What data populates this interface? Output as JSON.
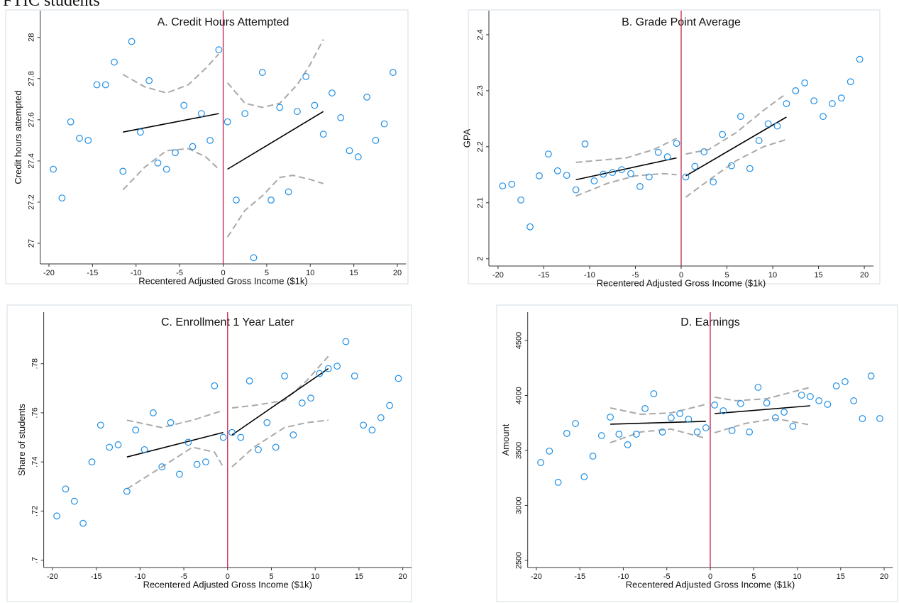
{
  "page_title": "FTIC students",
  "chart_data": [
    {
      "type": "scatter",
      "title": "A. Credit Hours Attempted",
      "x_label": "Recentered Adjusted Gross Income ($1k)",
      "y_label": "Credit hours attempted",
      "xlim": [
        -21,
        21
      ],
      "ylim": [
        26.9,
        28.13
      ],
      "xticks": [
        -20,
        -15,
        -10,
        -5,
        0,
        5,
        10,
        15,
        20
      ],
      "yticks": [
        27,
        27.2,
        27.4,
        27.6,
        27.8,
        28
      ],
      "cutoff": 0,
      "marker_color": "#1e8fe6",
      "cutoff_color": "#c0103a",
      "fit_color": "#000000",
      "band_color": "#a9a9a9",
      "x": [
        -19.5,
        -18.5,
        -17.5,
        -16.5,
        -15.5,
        -14.5,
        -13.5,
        -12.5,
        -11.5,
        -10.5,
        -9.5,
        -8.5,
        -7.5,
        -6.5,
        -5.5,
        -4.5,
        -3.5,
        -2.5,
        -1.5,
        -0.5,
        0.5,
        1.5,
        2.5,
        3.5,
        4.5,
        5.5,
        6.5,
        7.5,
        8.5,
        9.5,
        10.5,
        11.5,
        12.5,
        13.5,
        14.5,
        15.5,
        16.5,
        17.5,
        18.5,
        19.5
      ],
      "values": [
        27.36,
        27.22,
        27.59,
        27.51,
        27.5,
        27.77,
        27.77,
        27.88,
        27.35,
        27.98,
        27.54,
        27.79,
        27.39,
        27.36,
        27.44,
        27.67,
        27.47,
        27.63,
        27.5,
        27.94,
        27.59,
        27.21,
        27.63,
        26.93,
        27.83,
        27.21,
        27.66,
        27.25,
        27.64,
        27.81,
        27.67,
        27.53,
        27.73,
        27.61,
        27.45,
        27.42,
        27.71,
        27.5,
        27.58,
        27.83
      ],
      "fits": [
        {
          "x": [
            -11.5,
            -0.5
          ],
          "values": [
            27.54,
            27.63
          ]
        },
        {
          "x": [
            0.5,
            11.5
          ],
          "values": [
            27.36,
            27.64
          ]
        }
      ],
      "bands": [
        {
          "x": [
            -11.5,
            -9,
            -6.5,
            -4,
            -2,
            -0.5
          ],
          "values": [
            27.82,
            27.76,
            27.73,
            27.77,
            27.85,
            27.92
          ]
        },
        {
          "x": [
            -11.5,
            -9,
            -6.5,
            -4,
            -2,
            -0.5
          ],
          "values": [
            27.26,
            27.37,
            27.45,
            27.46,
            27.42,
            27.36
          ]
        },
        {
          "x": [
            0.5,
            2.5,
            4.5,
            6.5,
            8.5,
            10,
            11.5
          ],
          "values": [
            27.78,
            27.68,
            27.66,
            27.68,
            27.77,
            27.87,
            27.99
          ]
        },
        {
          "x": [
            0.5,
            2.5,
            4.5,
            6.5,
            8,
            10,
            11.5
          ],
          "values": [
            27.03,
            27.16,
            27.23,
            27.32,
            27.33,
            27.31,
            27.29
          ]
        }
      ]
    },
    {
      "type": "scatter",
      "title": "B. Grade Point Average",
      "x_label": "Recentered Adjusted Gross Income ($1k)",
      "y_label": "GPA",
      "xlim": [
        -21,
        21
      ],
      "ylim": [
        1.987,
        2.443
      ],
      "xticks": [
        -20,
        -15,
        -10,
        -5,
        0,
        5,
        10,
        15,
        20
      ],
      "yticks": [
        2,
        2.1,
        2.2,
        2.3,
        2.4
      ],
      "cutoff": 0,
      "marker_color": "#1e8fe6",
      "cutoff_color": "#c0103a",
      "fit_color": "#000000",
      "band_color": "#a9a9a9",
      "x": [
        -19.5,
        -18.5,
        -17.5,
        -16.5,
        -15.5,
        -14.5,
        -13.5,
        -12.5,
        -11.5,
        -10.5,
        -9.5,
        -8.5,
        -7.5,
        -6.5,
        -5.5,
        -4.5,
        -3.5,
        -2.5,
        -1.5,
        -0.5,
        0.5,
        1.5,
        2.5,
        3.5,
        4.5,
        5.5,
        6.5,
        7.5,
        8.5,
        9.5,
        10.5,
        11.5,
        12.5,
        13.5,
        14.5,
        15.5,
        16.5,
        17.5,
        18.5,
        19.5
      ],
      "values": [
        2.13,
        2.133,
        2.105,
        2.057,
        2.148,
        2.187,
        2.157,
        2.149,
        2.123,
        2.205,
        2.139,
        2.151,
        2.154,
        2.159,
        2.152,
        2.129,
        2.146,
        2.19,
        2.182,
        2.206,
        2.146,
        2.165,
        2.191,
        2.137,
        2.222,
        2.166,
        2.254,
        2.161,
        2.211,
        2.241,
        2.237,
        2.277,
        2.3,
        2.314,
        2.282,
        2.254,
        2.277,
        2.287,
        2.316,
        2.356
      ],
      "fits": [
        {
          "x": [
            -11.5,
            -0.5
          ],
          "values": [
            2.141,
            2.18
          ]
        },
        {
          "x": [
            0.5,
            11.5
          ],
          "values": [
            2.148,
            2.253
          ]
        }
      ],
      "bands": [
        {
          "x": [
            -11.5,
            -6,
            -3,
            -0.5
          ],
          "values": [
            2.172,
            2.18,
            2.195,
            2.215
          ]
        },
        {
          "x": [
            -11.5,
            -8,
            -5,
            -2,
            -0.5
          ],
          "values": [
            2.112,
            2.135,
            2.148,
            2.152,
            2.15
          ]
        },
        {
          "x": [
            0.5,
            3,
            6,
            9,
            11.5
          ],
          "values": [
            2.187,
            2.195,
            2.225,
            2.265,
            2.295
          ]
        },
        {
          "x": [
            0.5,
            3,
            6,
            9,
            11.5
          ],
          "values": [
            2.11,
            2.14,
            2.175,
            2.2,
            2.213
          ]
        }
      ]
    },
    {
      "type": "scatter",
      "title": "C. Enrollment 1 Year Later",
      "x_label": "Recentered Adjusted Gross Income ($1k)",
      "y_label": "Share of students",
      "xlim": [
        -21,
        21
      ],
      "ylim": [
        0.697,
        0.801
      ],
      "xticks": [
        -20,
        -15,
        -10,
        -5,
        0,
        5,
        10,
        15,
        20
      ],
      "yticks": [
        {
          "value": 0.7,
          "label": ".7"
        },
        {
          "value": 0.72,
          "label": ".72"
        },
        {
          "value": 0.74,
          "label": ".74"
        },
        {
          "value": 0.76,
          "label": ".76"
        },
        {
          "value": 0.78,
          "label": ".78"
        }
      ],
      "cutoff": 0,
      "marker_color": "#1e8fe6",
      "cutoff_color": "#c0103a",
      "fit_color": "#000000",
      "band_color": "#a9a9a9",
      "x": [
        -19.5,
        -18.5,
        -17.5,
        -16.5,
        -15.5,
        -14.5,
        -13.5,
        -12.5,
        -11.5,
        -10.5,
        -9.5,
        -8.5,
        -7.5,
        -6.5,
        -5.5,
        -4.5,
        -3.5,
        -2.5,
        -1.5,
        -0.5,
        0.5,
        1.5,
        2.5,
        3.5,
        4.5,
        5.5,
        6.5,
        7.5,
        8.5,
        9.5,
        10.5,
        11.5,
        12.5,
        13.5,
        14.5,
        15.5,
        16.5,
        17.5,
        18.5,
        19.5
      ],
      "values": [
        0.718,
        0.729,
        0.724,
        0.715,
        0.74,
        0.755,
        0.746,
        0.747,
        0.728,
        0.753,
        0.745,
        0.76,
        0.738,
        0.756,
        0.735,
        0.748,
        0.739,
        0.74,
        0.771,
        0.75,
        0.752,
        0.75,
        0.773,
        0.745,
        0.756,
        0.746,
        0.775,
        0.751,
        0.764,
        0.766,
        0.776,
        0.778,
        0.779,
        0.789,
        0.775,
        0.755,
        0.753,
        0.758,
        0.763,
        0.774
      ],
      "fits": [
        {
          "x": [
            -11.5,
            -0.5
          ],
          "values": [
            0.742,
            0.752
          ]
        },
        {
          "x": [
            0.5,
            11.5
          ],
          "values": [
            0.751,
            0.778
          ]
        }
      ],
      "bands": [
        {
          "x": [
            -11.5,
            -7.5,
            -4,
            -0.5
          ],
          "values": [
            0.757,
            0.754,
            0.757,
            0.761
          ]
        },
        {
          "x": [
            -11.5,
            -7.5,
            -4,
            -1.5,
            -0.5
          ],
          "values": [
            0.729,
            0.738,
            0.746,
            0.744,
            0.738
          ]
        },
        {
          "x": [
            0.5,
            3,
            6.5,
            9,
            11.5
          ],
          "values": [
            0.762,
            0.763,
            0.765,
            0.773,
            0.783
          ]
        },
        {
          "x": [
            0.5,
            3,
            6.5,
            9,
            11.5
          ],
          "values": [
            0.738,
            0.746,
            0.754,
            0.756,
            0.757
          ]
        }
      ]
    },
    {
      "type": "scatter",
      "title": "D. Earnings",
      "x_label": "Recentered Adjusted Gross Income ($1k)",
      "y_label": "Amount",
      "xlim": [
        -21,
        21
      ],
      "ylim": [
        2435,
        4758
      ],
      "xticks": [
        -20,
        -15,
        -10,
        -5,
        0,
        5,
        10,
        15,
        20
      ],
      "yticks": [
        2500,
        3000,
        3500,
        4000,
        4500
      ],
      "cutoff": 0,
      "marker_color": "#1e8fe6",
      "cutoff_color": "#c0103a",
      "fit_color": "#000000",
      "band_color": "#a9a9a9",
      "x": [
        -19.5,
        -18.5,
        -17.5,
        -16.5,
        -15.5,
        -14.5,
        -13.5,
        -12.5,
        -11.5,
        -10.5,
        -9.5,
        -8.5,
        -7.5,
        -6.5,
        -5.5,
        -4.5,
        -3.5,
        -2.5,
        -1.5,
        -0.5,
        0.5,
        1.5,
        2.5,
        3.5,
        4.5,
        5.5,
        6.5,
        7.5,
        8.5,
        9.5,
        10.5,
        11.5,
        12.5,
        13.5,
        14.5,
        15.5,
        16.5,
        17.5,
        18.5,
        19.5
      ],
      "values": [
        3390,
        3494,
        3210,
        3655,
        3745,
        3261,
        3448,
        3635,
        3803,
        3648,
        3552,
        3648,
        3881,
        4016,
        3668,
        3797,
        3835,
        3784,
        3668,
        3706,
        3913,
        3861,
        3681,
        3926,
        3668,
        4074,
        3932,
        3797,
        3848,
        3719,
        4003,
        3990,
        3952,
        3919,
        4087,
        4126,
        3952,
        3790,
        4177,
        3790
      ],
      "fits": [
        {
          "x": [
            -11.5,
            -0.5
          ],
          "values": [
            3739,
            3765
          ]
        },
        {
          "x": [
            0.5,
            11.5
          ],
          "values": [
            3835,
            3906
          ]
        }
      ],
      "bands": [
        {
          "x": [
            -11.5,
            -8,
            -4.5,
            -0.5
          ],
          "values": [
            3887,
            3829,
            3842,
            3919
          ]
        },
        {
          "x": [
            -11.5,
            -8,
            -4.5,
            -0.5
          ],
          "values": [
            3571,
            3668,
            3694,
            3610
          ]
        },
        {
          "x": [
            0.5,
            3,
            6.5,
            11.5
          ],
          "values": [
            3984,
            3952,
            3971,
            4074
          ]
        },
        {
          "x": [
            0.5,
            4,
            7.5,
            11.5
          ],
          "values": [
            3661,
            3745,
            3790,
            3732
          ]
        }
      ]
    }
  ]
}
